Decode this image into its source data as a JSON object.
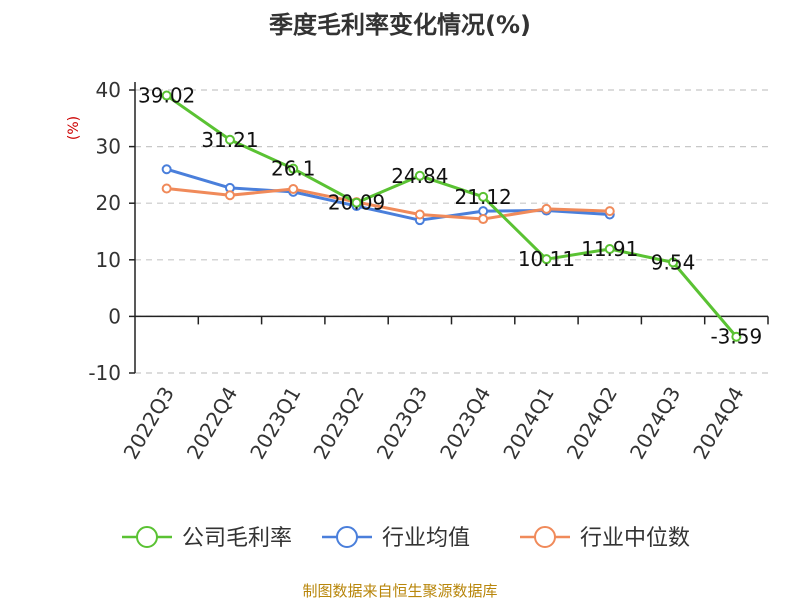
{
  "chart_data": {
    "type": "line",
    "title": "季度毛利率变化情况(%)",
    "ylabel": "(%)",
    "xlabel": "",
    "ylim": [
      -10,
      40
    ],
    "yticks": [
      40,
      30,
      20,
      10,
      0,
      -10
    ],
    "categories": [
      "2022Q3",
      "2022Q4",
      "2023Q1",
      "2023Q2",
      "2023Q3",
      "2023Q4",
      "2024Q1",
      "2024Q2",
      "2024Q3",
      "2024Q4"
    ],
    "grid": true,
    "legend_position": "bottom",
    "series": [
      {
        "name": "公司毛利率",
        "color": "#5ac233",
        "values": [
          39.02,
          31.21,
          26.1,
          20.09,
          24.84,
          21.12,
          10.11,
          11.91,
          9.54,
          -3.59
        ],
        "labels": [
          "39.02",
          "31.21",
          "26.1",
          "20.09",
          "24.84",
          "21.12",
          "10.11",
          "11.91",
          "9.54",
          "-3.59"
        ]
      },
      {
        "name": "行业均值",
        "color": "#4a7fdb",
        "values": [
          26.0,
          22.7,
          22.0,
          19.5,
          17.0,
          18.6,
          18.7,
          18.0,
          null,
          null
        ]
      },
      {
        "name": "行业中位数",
        "color": "#f08a5a",
        "values": [
          22.6,
          21.4,
          22.5,
          20.2,
          18.0,
          17.2,
          19.0,
          18.6,
          null,
          null
        ]
      }
    ]
  },
  "footer": "制图数据来自恒生聚源数据库"
}
